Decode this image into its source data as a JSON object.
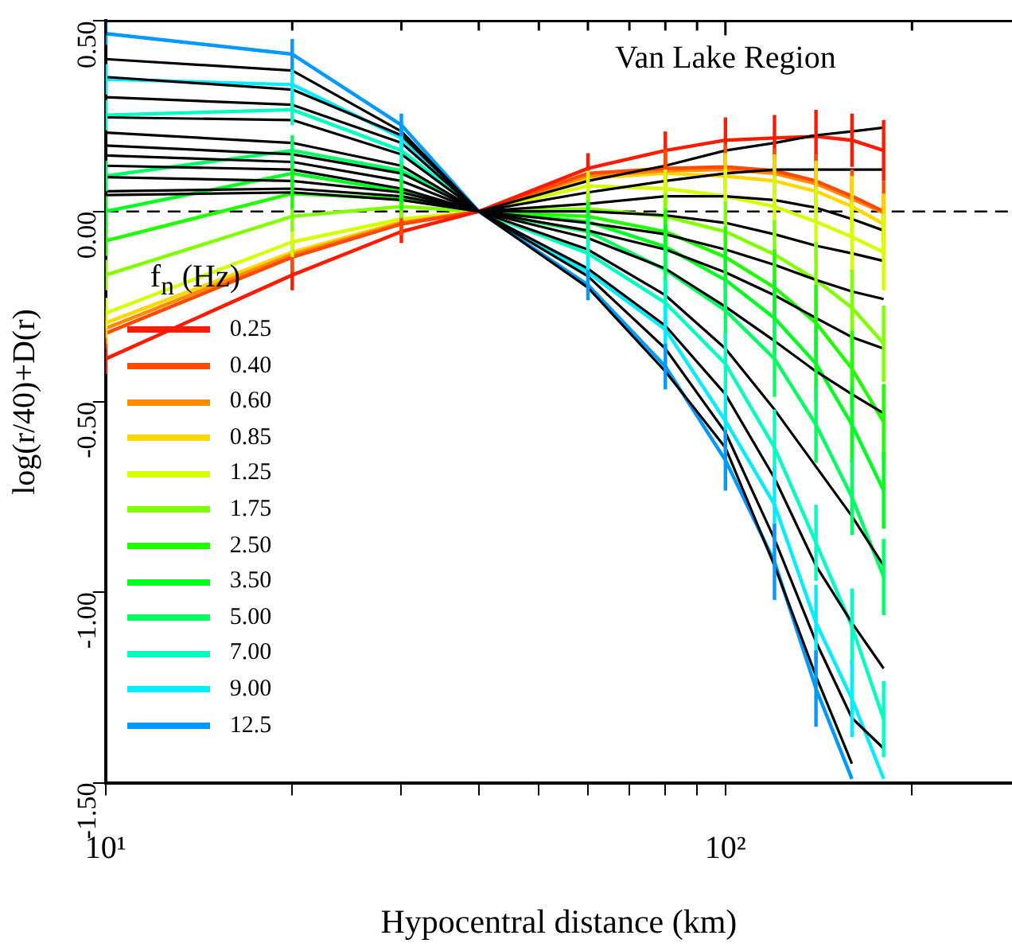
{
  "chart_data": {
    "type": "line",
    "title": "Van Lake Region",
    "xlabel": "Hypocentral distance (km)",
    "ylabel": "log(r/40)+D(r)",
    "legend_title": "f$_{n}$ (Hz)",
    "legend": "left",
    "grid": false,
    "marker": "none",
    "line_style": "solid",
    "log": "x",
    "x": [
      10,
      20,
      30,
      40,
      60,
      80,
      100,
      120,
      140,
      160,
      180
    ],
    "xlim": [
      10,
      290
    ],
    "xticks": [
      {
        "value": 10,
        "label": "10¹"
      },
      {
        "value": 20,
        "label": null
      },
      {
        "value": 30,
        "label": null
      },
      {
        "value": 40,
        "label": null
      },
      {
        "value": 50,
        "label": null
      },
      {
        "value": 60,
        "label": null
      },
      {
        "value": 70,
        "label": null
      },
      {
        "value": 80,
        "label": null
      },
      {
        "value": 90,
        "label": null
      },
      {
        "value": 100,
        "label": "10²"
      },
      {
        "value": 200,
        "label": null
      }
    ],
    "ylim": [
      -1.5,
      0.5
    ],
    "yticks": [
      {
        "value": 0.5,
        "label": "0.50"
      },
      {
        "value": 0,
        "label": "0.00"
      },
      {
        "value": -0.5,
        "label": "-0.50"
      },
      {
        "value": -1,
        "label": "-1.00"
      },
      {
        "value": -1.5,
        "label": "-1.50"
      }
    ],
    "ref_lines": [
      {
        "axis": "y",
        "value": 0,
        "line_style": "dashed",
        "color": "#000000"
      }
    ],
    "series": [
      {
        "color": "#000000",
        "values": [
          0.4,
          0.37,
          0.21,
          0,
          -0.2,
          -0.42,
          -0.62,
          -0.93,
          -1.22,
          -1.45,
          null
        ]
      },
      {
        "color": "#000000",
        "values": [
          0.353,
          0.32,
          0.2,
          0,
          -0.17,
          -0.36,
          -0.58,
          -0.86,
          -1.13,
          -1.33,
          -1.41
        ]
      },
      {
        "color": "#000000",
        "values": [
          0.3,
          0.28,
          0.18,
          0,
          -0.15,
          -0.3,
          -0.48,
          -0.7,
          -0.93,
          -1.08,
          -1.2
        ]
      },
      {
        "color": "#000000",
        "values": [
          0.247,
          0.24,
          0.15,
          0,
          -0.1,
          -0.22,
          -0.36,
          -0.52,
          -0.67,
          -0.8,
          -0.93
        ]
      },
      {
        "color": "#000000",
        "values": [
          0.207,
          0.18,
          0.12,
          0,
          -0.07,
          -0.15,
          -0.25,
          -0.34,
          -0.42,
          -0.48,
          -0.53
        ]
      },
      {
        "color": "#000000",
        "values": [
          0.173,
          0.15,
          0.1,
          0,
          -0.05,
          -0.1,
          -0.16,
          -0.22,
          -0.28,
          -0.33,
          -0.36
        ]
      },
      {
        "color": "#000000",
        "values": [
          0.147,
          0.13,
          0.08,
          0,
          -0.03,
          -0.06,
          -0.1,
          -0.14,
          -0.18,
          -0.21,
          -0.23
        ]
      },
      {
        "color": "#000000",
        "values": [
          0.12,
          0.11,
          0.06,
          0,
          0.0,
          -0.01,
          -0.03,
          -0.06,
          -0.09,
          -0.11,
          -0.13
        ]
      },
      {
        "color": "#000000",
        "values": [
          0.09,
          0.08,
          0.05,
          0,
          0.02,
          0.04,
          0.04,
          0.03,
          0.01,
          -0.02,
          -0.05
        ]
      },
      {
        "color": "#000000",
        "values": [
          0.053,
          0.06,
          0.04,
          0,
          0.05,
          0.08,
          0.1,
          0.11,
          0.11,
          0.11,
          0.11
        ]
      },
      {
        "color": "#000000",
        "values": [
          0.043,
          0.05,
          0.03,
          0,
          0.08,
          0.12,
          0.16,
          0.18,
          0.2,
          0.21,
          0.22
        ]
      },
      {
        "name": "0.25",
        "color": "#ff1a00",
        "values": [
          -0.387,
          -0.167,
          -0.053,
          0,
          0.113,
          0.16,
          0.187,
          0.193,
          0.197,
          0.187,
          0.16
        ],
        "errors": [
          0.04,
          0.04,
          0.03,
          null,
          0.04,
          0.05,
          0.06,
          0.06,
          0.07,
          0.07,
          0.08
        ]
      },
      {
        "name": "0.40",
        "color": "#ff4a00",
        "values": [
          -0.32,
          -0.12,
          -0.033,
          0,
          0.1,
          0.113,
          0.117,
          0.107,
          0.08,
          0.04,
          0.0
        ],
        "errors": [
          0.04,
          0.04,
          0.03,
          null,
          null,
          0.05,
          0.06,
          0.06,
          0.07,
          0.07,
          0.08
        ]
      },
      {
        "name": "0.60",
        "color": "#ff8c00",
        "values": [
          -0.307,
          -0.113,
          -0.03,
          0,
          0.093,
          0.107,
          0.11,
          0.1,
          0.073,
          0.033,
          -0.003
        ],
        "errors": [
          0.04,
          null,
          null,
          null,
          null,
          null,
          null,
          null,
          null,
          null,
          null
        ]
      },
      {
        "name": "0.85",
        "color": "#ffd700",
        "values": [
          -0.293,
          -0.107,
          -0.027,
          0,
          0.087,
          0.1,
          0.093,
          0.08,
          0.053,
          0.013,
          -0.033
        ],
        "errors": [
          0.04,
          null,
          null,
          null,
          null,
          null,
          0.06,
          0.07,
          0.08,
          0.08,
          0.08
        ]
      },
      {
        "name": "1.25",
        "color": "#d4ff00",
        "values": [
          -0.267,
          -0.08,
          -0.02,
          0,
          0.067,
          0.06,
          0.04,
          0.013,
          -0.027,
          -0.067,
          -0.107
        ],
        "errors": [
          0.04,
          0.04,
          null,
          null,
          0.04,
          0.05,
          0.07,
          0.08,
          0.09,
          0.09,
          0.1
        ]
      },
      {
        "name": "1.75",
        "color": "#80ff00",
        "values": [
          -0.167,
          -0.013,
          0.013,
          0,
          0.007,
          -0.013,
          -0.053,
          -0.113,
          -0.18,
          -0.253,
          -0.347
        ],
        "errors": [
          0.04,
          0.04,
          0.03,
          null,
          0.04,
          0.06,
          0.08,
          0.09,
          0.1,
          0.1,
          0.1
        ]
      },
      {
        "name": "2.50",
        "color": "#20ff00",
        "values": [
          -0.077,
          0.047,
          0.033,
          0,
          -0.013,
          -0.053,
          -0.12,
          -0.2,
          -0.293,
          -0.413,
          -0.553
        ],
        "errors": [
          0.04,
          0.04,
          0.03,
          null,
          0.04,
          0.06,
          0.08,
          0.1,
          0.1,
          0.1,
          0.1
        ]
      },
      {
        "name": "3.50",
        "color": "#00ff20",
        "values": [
          0.0,
          0.1,
          0.053,
          0,
          -0.027,
          -0.093,
          -0.18,
          -0.28,
          -0.4,
          -0.56,
          -0.733
        ],
        "errors": [
          0.04,
          0.04,
          0.03,
          null,
          0.04,
          0.06,
          0.08,
          0.1,
          0.1,
          0.1,
          0.1
        ]
      },
      {
        "name": "5.00",
        "color": "#00ff60",
        "values": [
          0.093,
          0.16,
          0.107,
          0,
          -0.053,
          -0.153,
          -0.26,
          -0.387,
          -0.56,
          -0.75,
          -0.96
        ],
        "errors": [
          0.04,
          0.04,
          0.03,
          null,
          0.04,
          0.06,
          0.08,
          0.1,
          0.1,
          0.1,
          0.1
        ]
      },
      {
        "name": "7.00",
        "color": "#00ffc0",
        "values": [
          0.253,
          0.267,
          0.16,
          0,
          -0.11,
          -0.24,
          -0.4,
          -0.62,
          -0.87,
          -1.09,
          -1.333
        ],
        "errors": [
          0.04,
          0.04,
          0.03,
          null,
          0.04,
          0.06,
          0.08,
          0.1,
          0.1,
          0.1,
          0.1
        ]
      },
      {
        "name": "9.00",
        "color": "#00eeff",
        "values": [
          0.347,
          0.333,
          0.193,
          0,
          -0.16,
          -0.31,
          -0.55,
          -0.77,
          -1.08,
          -1.28,
          -1.49
        ],
        "errors": [
          0.04,
          0.04,
          0.03,
          null,
          0.04,
          0.06,
          0.08,
          0.1,
          0.1,
          0.1,
          null
        ]
      },
      {
        "name": "12.5",
        "color": "#0099ff",
        "values": [
          0.467,
          0.413,
          0.227,
          0,
          -0.193,
          -0.407,
          -0.653,
          -0.92,
          -1.253,
          -1.49,
          null
        ],
        "errors": [
          0.03,
          0.04,
          0.03,
          null,
          0.04,
          0.06,
          0.08,
          0.1,
          0.1,
          null,
          null
        ]
      }
    ]
  }
}
